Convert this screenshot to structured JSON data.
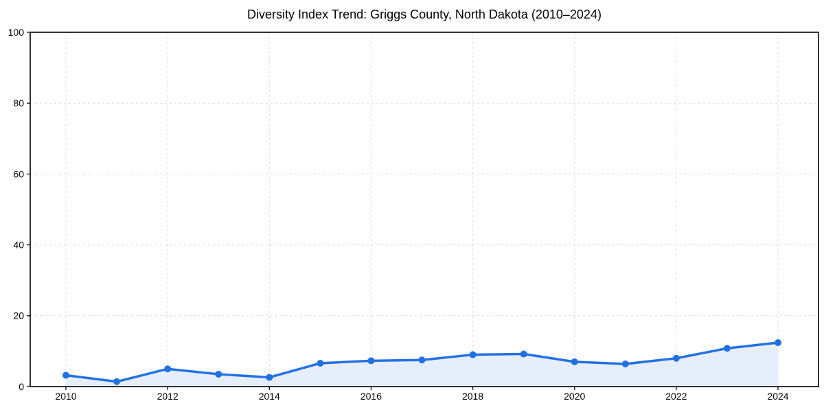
{
  "title": "Diversity Index Trend: Griggs County, North Dakota (2010–2024)",
  "chart_data": {
    "type": "line",
    "title": "Diversity Index Trend: Griggs County, North Dakota (2010–2024)",
    "x": [
      2010,
      2011,
      2012,
      2013,
      2014,
      2015,
      2016,
      2017,
      2018,
      2019,
      2020,
      2021,
      2022,
      2023,
      2024
    ],
    "series": [
      {
        "name": "Diversity Index",
        "values": [
          3.2,
          1.4,
          5.0,
          3.5,
          2.6,
          6.6,
          7.3,
          7.5,
          9.0,
          9.2,
          7.0,
          6.4,
          8.0,
          10.8,
          12.4
        ]
      }
    ],
    "xlabel": "",
    "ylabel": "",
    "ylim": [
      0,
      100
    ],
    "yticks": [
      0,
      20,
      40,
      60,
      80,
      100
    ],
    "xticks": [
      2010,
      2012,
      2014,
      2016,
      2018,
      2020,
      2022,
      2024
    ],
    "grid": true,
    "grid_style": "dashed",
    "legend": false,
    "marker": "circle",
    "area_fill": true,
    "colors": {
      "line": "#2271e3",
      "marker": "#2271e3",
      "fill": "#e7eefb",
      "grid": "#d9d9d9",
      "axis": "#000000",
      "text": "#000000",
      "background": "#ffffff"
    }
  }
}
